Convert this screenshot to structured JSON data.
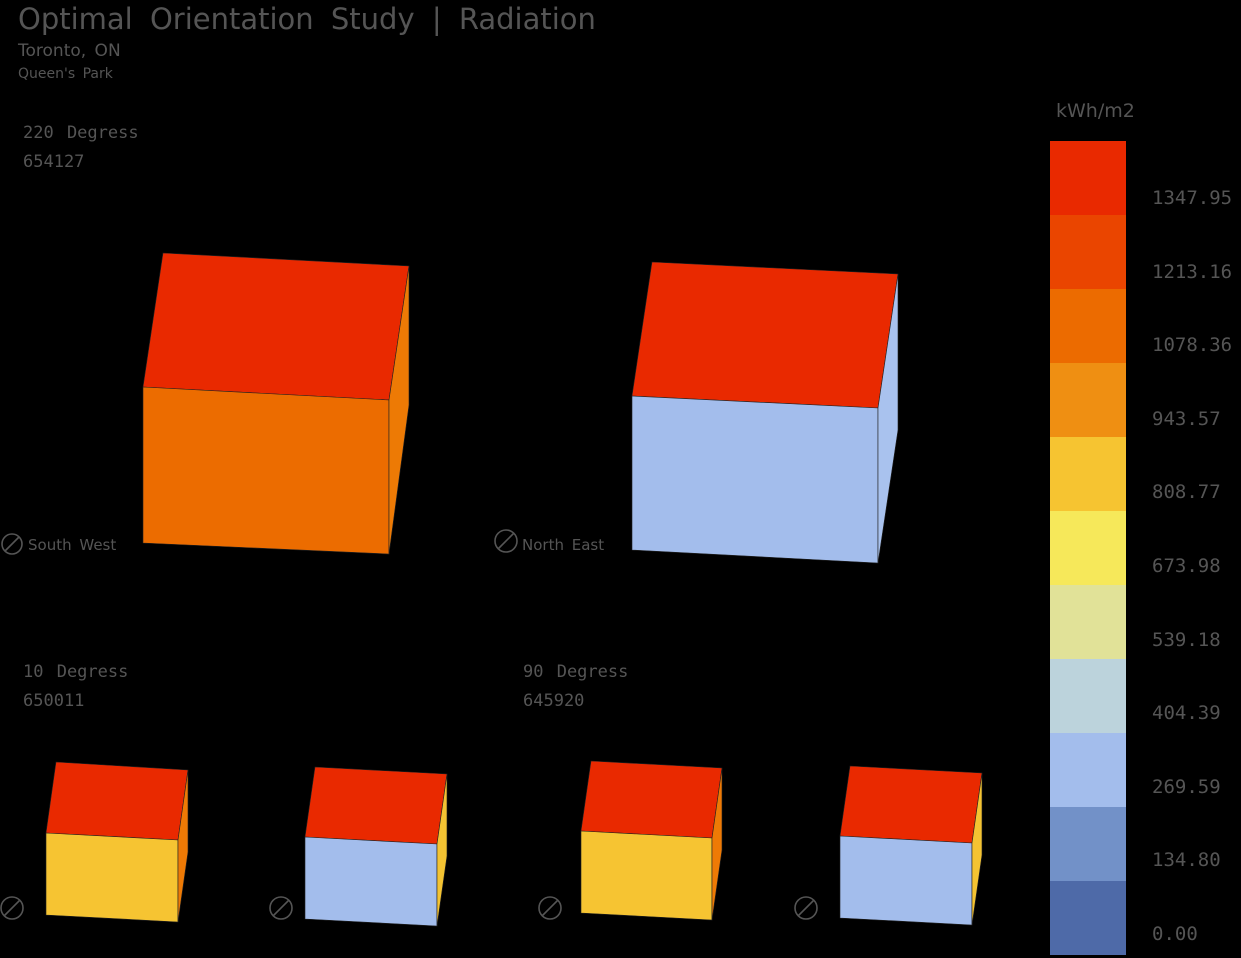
{
  "header": {
    "title": "Optimal Orientation Study | Radiation",
    "city": "Toronto, ON",
    "site": "Queen's Park"
  },
  "studies": [
    {
      "rotation_label": "220 Degress",
      "total_value": "654127"
    },
    {
      "rotation_label": "10 Degress",
      "total_value": "650011"
    },
    {
      "rotation_label": "90 Degress",
      "total_value": "645920"
    }
  ],
  "directions": {
    "south_west": "South West",
    "north_east": "North East"
  },
  "legend": {
    "unit": "kWh/m2",
    "ticks": [
      "1347.95",
      "1213.16",
      "1078.36",
      "943.57",
      "808.77",
      "673.98",
      "539.18",
      "404.39",
      "269.59",
      "134.80",
      "0.00"
    ],
    "colors_top_to_bottom": [
      "#e92900",
      "#ea4500",
      "#ec6b00",
      "#ef8f12",
      "#f6c431",
      "#f6e85a",
      "#e1e298",
      "#bcd3dc",
      "#a3bdec",
      "#7291c8",
      "#4e6aa8"
    ]
  },
  "cubes": [
    {
      "id": "large-sw",
      "top_color": "#e92900",
      "front_color": "#ec6c00",
      "side_color": "#ed7a05"
    },
    {
      "id": "large-ne",
      "top_color": "#e92900",
      "front_color": "#a3bdec",
      "side_color": "#a9c2ee"
    },
    {
      "id": "small-10-a",
      "top_color": "#e92900",
      "front_color": "#f6c432",
      "side_color": "#ee7a05"
    },
    {
      "id": "small-10-b",
      "top_color": "#e92900",
      "front_color": "#a3bdec",
      "side_color": "#f4c332"
    },
    {
      "id": "small-90-a",
      "top_color": "#e92900",
      "front_color": "#f6c432",
      "side_color": "#ee7a05"
    },
    {
      "id": "small-90-b",
      "top_color": "#e92900",
      "front_color": "#a3bdec",
      "side_color": "#f4c332"
    }
  ]
}
